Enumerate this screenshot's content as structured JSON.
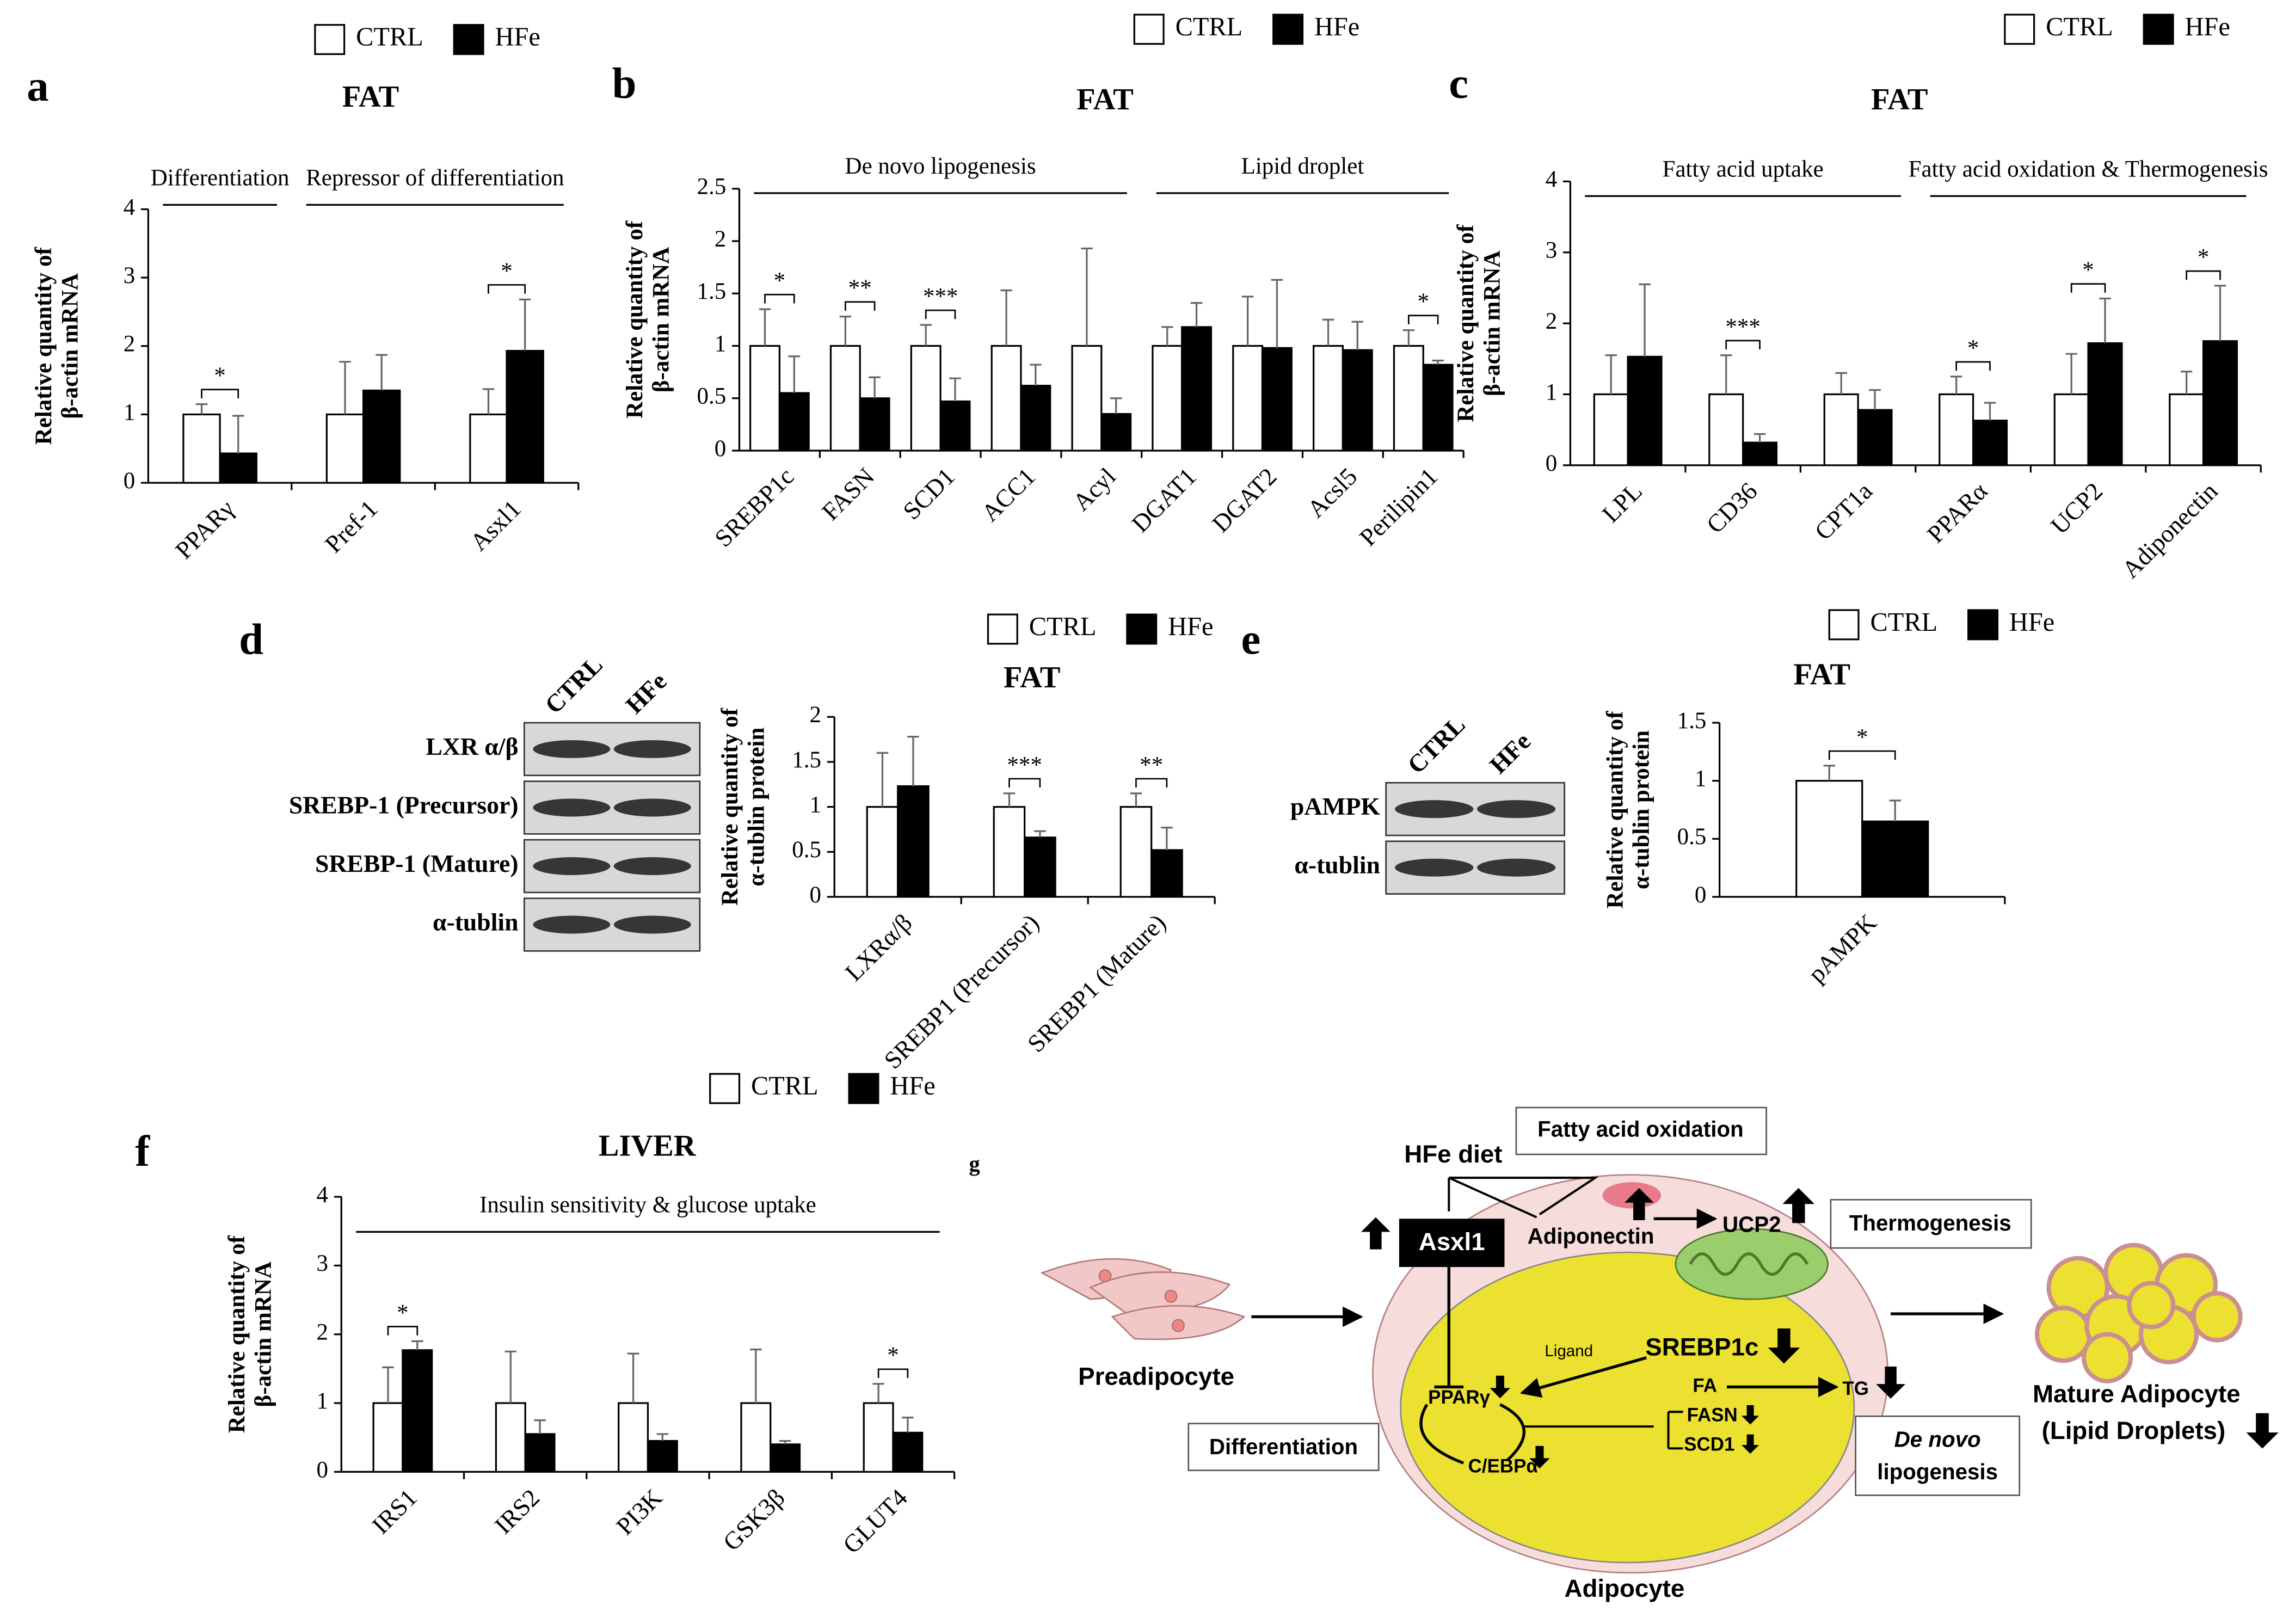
{
  "chart_data": [
    {
      "type": "bar",
      "panel": "a",
      "title": "FAT",
      "ylabel": [
        "Relative quantity of",
        "β-actin mRNA"
      ],
      "categories": [
        "PPARγ",
        "Pref-1",
        "Asxl1"
      ],
      "series": [
        {
          "name": "CTRL",
          "color": "#ffffff",
          "values": [
            1,
            1,
            1
          ],
          "errors": [
            0.15,
            0.77,
            0.37
          ]
        },
        {
          "name": "HFe",
          "color": "#000000",
          "values": [
            0.43,
            1.35,
            1.93
          ],
          "errors": [
            0.55,
            0.52,
            0.75
          ]
        }
      ],
      "significance": [
        "*",
        null,
        "*"
      ],
      "groups": [
        {
          "label": "Differentiation",
          "from": "PPARγ",
          "to": "PPARγ"
        },
        {
          "label": "Repressor of differentiation",
          "from": "Pref-1",
          "to": "Asxl1"
        }
      ],
      "ylim": [
        0,
        4
      ],
      "yticks": [
        0,
        1,
        2,
        3,
        4
      ]
    },
    {
      "type": "bar",
      "panel": "b",
      "title": "FAT",
      "ylabel": [
        "Relative quantity of",
        "β-actin mRNA"
      ],
      "categories": [
        "SREBP1c",
        "FASN",
        "SCD1",
        "ACC1",
        "Acyl",
        "DGAT1",
        "DGAT2",
        "Acsl5",
        "Perilipin1"
      ],
      "series": [
        {
          "name": "CTRL",
          "color": "#ffffff",
          "values": [
            1,
            1,
            1,
            1,
            1,
            1,
            1,
            1,
            1
          ],
          "errors": [
            0.35,
            0.28,
            0.2,
            0.53,
            0.93,
            0.18,
            0.47,
            0.25,
            0.15
          ]
        },
        {
          "name": "HFe",
          "color": "#000000",
          "values": [
            0.55,
            0.5,
            0.47,
            0.62,
            0.35,
            1.18,
            0.98,
            0.96,
            0.82
          ],
          "errors": [
            0.35,
            0.2,
            0.22,
            0.2,
            0.15,
            0.23,
            0.65,
            0.27,
            0.04
          ]
        }
      ],
      "significance": [
        "*",
        "**",
        "***",
        null,
        null,
        null,
        null,
        null,
        "*"
      ],
      "groups": [
        {
          "label": "De novo lipogenesis",
          "from": "SREBP1c",
          "to": "Acyl"
        },
        {
          "label": "Lipid droplet",
          "from": "DGAT1",
          "to": "Perilipin1"
        }
      ],
      "ylim": [
        0,
        2.5
      ],
      "yticks": [
        0,
        0.5,
        1,
        1.5,
        2,
        2.5
      ]
    },
    {
      "type": "bar",
      "panel": "c",
      "title": "FAT",
      "ylabel": [
        "Relative quantity of",
        "β-actin mRNA"
      ],
      "categories": [
        "LPL",
        "CD36",
        "CPT1a",
        "PPARα",
        "UCP2",
        "Adiponectin"
      ],
      "series": [
        {
          "name": "CTRL",
          "color": "#ffffff",
          "values": [
            1,
            1,
            1,
            1,
            1,
            1
          ],
          "errors": [
            0.55,
            0.55,
            0.3,
            0.25,
            0.57,
            0.32
          ]
        },
        {
          "name": "HFe",
          "color": "#000000",
          "values": [
            1.53,
            0.32,
            0.78,
            0.63,
            1.72,
            1.75
          ],
          "errors": [
            1.02,
            0.12,
            0.28,
            0.25,
            0.63,
            0.78
          ]
        }
      ],
      "significance": [
        null,
        "***",
        null,
        "*",
        "*",
        "*"
      ],
      "groups": [
        {
          "label": "Fatty acid uptake",
          "from": "LPL",
          "to": "CPT1a"
        },
        {
          "label": "Fatty acid oxidation & Thermogenesis",
          "from": "PPARα",
          "to": "Adiponectin"
        }
      ],
      "ylim": [
        0,
        4
      ],
      "yticks": [
        0,
        1,
        2,
        3,
        4
      ]
    },
    {
      "type": "bar",
      "panel": "d",
      "title": "FAT",
      "ylabel": [
        "Relative quantity of",
        "α-tublin protein"
      ],
      "categories": [
        "LXRα/β",
        "SREBP1 (Precursor)",
        "SREBP1 (Mature)"
      ],
      "series": [
        {
          "name": "CTRL",
          "color": "#ffffff",
          "values": [
            1,
            1,
            1
          ],
          "errors": [
            0.6,
            0.15,
            0.15
          ]
        },
        {
          "name": "HFe",
          "color": "#000000",
          "values": [
            1.23,
            0.66,
            0.52
          ],
          "errors": [
            0.55,
            0.07,
            0.25
          ]
        }
      ],
      "significance": [
        null,
        "***",
        "**"
      ],
      "blot": {
        "lanes": [
          "CTRL",
          "HFe"
        ],
        "rows": [
          "LXR α/β",
          "SREBP-1 (Precursor)",
          "SREBP-1 (Mature)",
          "α-tublin"
        ]
      },
      "ylim": [
        0,
        2
      ],
      "yticks": [
        0,
        0.5,
        1,
        1.5,
        2
      ]
    },
    {
      "type": "bar",
      "panel": "e",
      "title": "FAT",
      "ylabel": [
        "Relative quantity of",
        "α-tublin protein"
      ],
      "categories": [
        "pAMPK"
      ],
      "series": [
        {
          "name": "CTRL",
          "color": "#ffffff",
          "values": [
            1
          ],
          "errors": [
            0.13
          ]
        },
        {
          "name": "HFe",
          "color": "#000000",
          "values": [
            0.65
          ],
          "errors": [
            0.18
          ]
        }
      ],
      "significance": [
        "*"
      ],
      "blot": {
        "lanes": [
          "CTRL",
          "HFe"
        ],
        "rows": [
          "pAMPK",
          "α-tublin"
        ]
      },
      "ylim": [
        0,
        1.5
      ],
      "yticks": [
        0,
        0.5,
        1,
        1.5
      ]
    },
    {
      "type": "bar",
      "panel": "f",
      "title": "LIVER",
      "ylabel": [
        "Relative quantity of",
        "β-actin mRNA"
      ],
      "categories": [
        "IRS1",
        "IRS2",
        "PI3K",
        "GSK3β",
        "GLUT4"
      ],
      "series": [
        {
          "name": "CTRL",
          "color": "#ffffff",
          "values": [
            1,
            1,
            1,
            1,
            1
          ],
          "errors": [
            0.52,
            0.75,
            0.72,
            0.78,
            0.28
          ]
        },
        {
          "name": "HFe",
          "color": "#000000",
          "values": [
            1.77,
            0.55,
            0.45,
            0.4,
            0.57
          ],
          "errors": [
            0.13,
            0.2,
            0.1,
            0.05,
            0.22
          ]
        }
      ],
      "significance": [
        "*",
        null,
        null,
        null,
        "*"
      ],
      "groups": [
        {
          "label": "Insulin sensitivity & glucose uptake",
          "from": "IRS1",
          "to": "GLUT4"
        }
      ],
      "ylim": [
        0,
        4
      ],
      "yticks": [
        0,
        1,
        2,
        3,
        4
      ]
    }
  ],
  "diagram": {
    "panel": "g",
    "labels": [
      "HFe diet",
      "Fatty acid oxidation",
      "Asxl1",
      "Adiponectin",
      "UCP2",
      "Thermogenesis",
      "Preadipocyte",
      "Ligand",
      "SREBP1c",
      "PPARγ",
      "FA",
      "TG",
      "FASN",
      "SCD1",
      "C/EBPα",
      "Differentiation",
      "De novo",
      "lipogenesis",
      "Mature Adipocyte",
      "(Lipid Droplets)",
      "Adipocyte"
    ]
  }
}
